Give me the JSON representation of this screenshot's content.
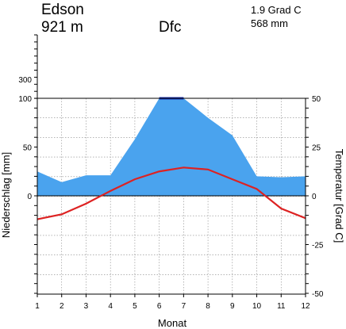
{
  "header": {
    "station": "Edson",
    "elevation": "921 m",
    "climate_class": "Dfc",
    "mean_temp": "1.9 Grad C",
    "annual_precip": "568 mm"
  },
  "chart_data": {
    "type": "area",
    "x": [
      1,
      2,
      3,
      4,
      5,
      6,
      7,
      8,
      9,
      10,
      11,
      12
    ],
    "xlabel": "Monat",
    "ylabel_left": "Niederschlag [mm]",
    "ylabel_right": "Temperatur [Grad C]",
    "xlim": [
      1,
      12
    ],
    "precip_ylim": [
      0,
      100
    ],
    "precip_ticks": [
      0,
      50,
      100,
      300
    ],
    "temp_ylim": [
      -50,
      50
    ],
    "temp_ticks": [
      -50,
      -25,
      0,
      25,
      50
    ],
    "grid": true,
    "series": [
      {
        "values": [
          25,
          14,
          21,
          21,
          58,
          100,
          100,
          80,
          62,
          20,
          19,
          20
        ],
        "color": "#4aa3ee"
      },
      {
        "values": [
          -12,
          -9.5,
          -4,
          2.5,
          8.5,
          12.5,
          14.5,
          13.5,
          8.5,
          3.5,
          -6.5,
          -11.5
        ],
        "color": "#dd2222"
      }
    ],
    "colors": {
      "precip": "#4aa3ee",
      "precip_top": "#1a2fb0",
      "temp": "#dd2222"
    }
  }
}
